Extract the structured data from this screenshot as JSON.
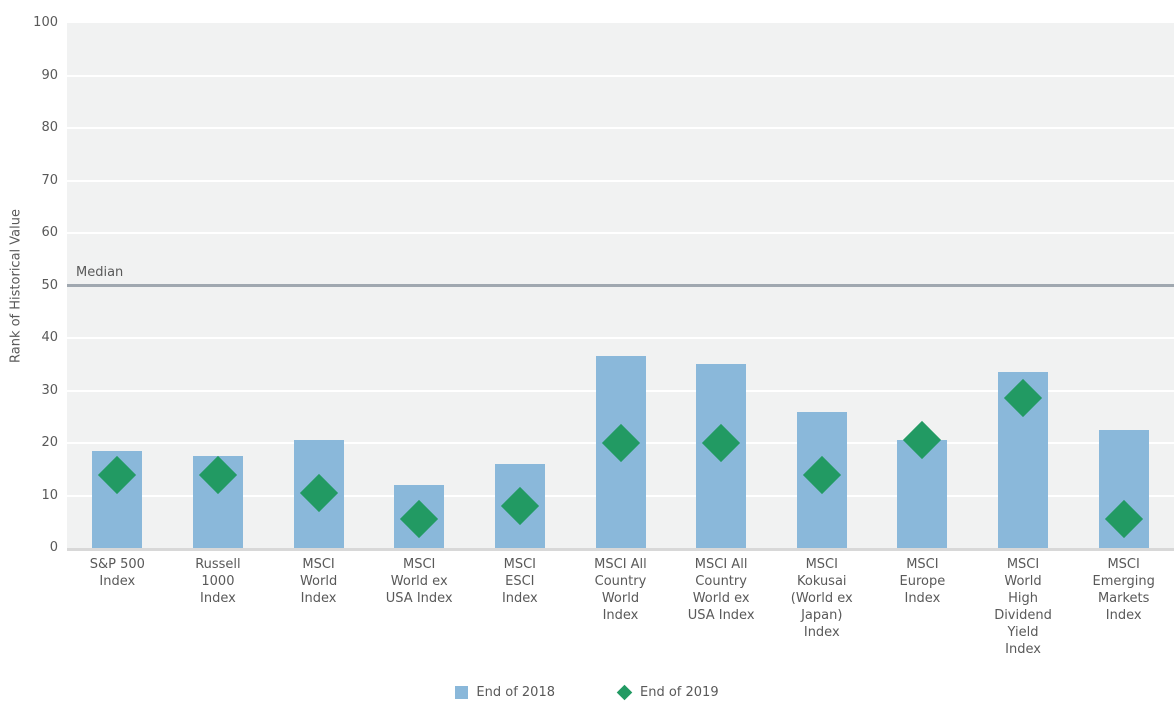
{
  "chart_data": {
    "type": "bar",
    "title": "",
    "xlabel": "",
    "ylabel": "Rank of Historical Value",
    "ylim": [
      0,
      100
    ],
    "yticks": [
      0,
      10,
      20,
      30,
      40,
      50,
      60,
      70,
      80,
      90,
      100
    ],
    "grid": true,
    "legend_position": "bottom-center",
    "median_line": {
      "value": 50,
      "label": "Median"
    },
    "categories": [
      [
        "S&P 500",
        "Index"
      ],
      [
        "Russell",
        "1000",
        "Index"
      ],
      [
        "MSCI",
        "World",
        "Index"
      ],
      [
        "MSCI",
        "World ex",
        "USA Index"
      ],
      [
        "MSCI",
        "ESCI",
        "Index"
      ],
      [
        "MSCI All",
        "Country",
        "World",
        "Index"
      ],
      [
        "MSCI All",
        "Country",
        "World ex",
        "USA Index"
      ],
      [
        "MSCI",
        "Kokusai",
        "(World ex",
        "Japan)",
        "Index"
      ],
      [
        "MSCI",
        "Europe",
        "Index"
      ],
      [
        "MSCI",
        "World",
        "High",
        "Dividend",
        "Yield",
        "Index"
      ],
      [
        "MSCI",
        "Emerging",
        "Markets",
        "Index"
      ]
    ],
    "series": [
      {
        "name": "End of 2018",
        "marker": "square",
        "color": "#8ab8da",
        "values": [
          18.5,
          17.5,
          20.5,
          12,
          16,
          36.5,
          35,
          26,
          20.5,
          33.5,
          22.5
        ]
      },
      {
        "name": "End of 2019",
        "marker": "diamond",
        "color": "#229a63",
        "values": [
          14,
          14,
          10.5,
          5.5,
          8,
          20,
          20,
          14,
          20.5,
          28.5,
          5.5
        ]
      }
    ],
    "colors": {
      "plot_background": "#f1f2f2",
      "gridline": "#ffffff",
      "median_line": "#a0a8b0",
      "axis_line": "#d8d8d8",
      "text": "#595959"
    }
  }
}
